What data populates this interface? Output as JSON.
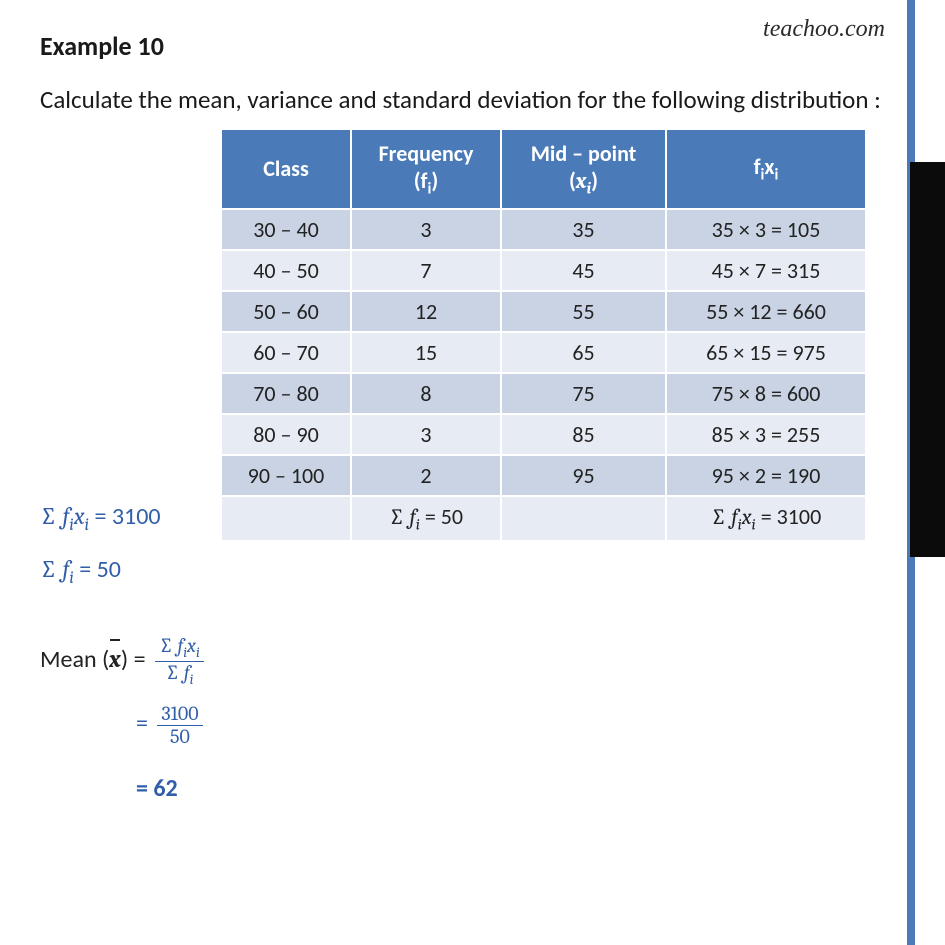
{
  "watermark": "teachoo.com",
  "title": "Example 10",
  "question": "Calculate the mean, variance and standard deviation for the following distribution :",
  "table": {
    "headers": {
      "class": "Class",
      "freq_line1": "Frequency",
      "freq_line2": "(f",
      "freq_sub": "i",
      "freq_close": ")",
      "mid_line1": "Mid – point",
      "mid_open": "(",
      "mid_var": "x",
      "mid_sub": "i",
      "mid_close": ")",
      "fixi_f": "f",
      "fixi_i1": "i",
      "fixi_x": "x",
      "fixi_i2": "i"
    },
    "rows": [
      {
        "class": "30 – 40",
        "freq": "3",
        "mid": "35",
        "fixi": "35 ×  3 = 105"
      },
      {
        "class": "40 – 50",
        "freq": "7",
        "mid": "45",
        "fixi": "45 × 7 = 315"
      },
      {
        "class": "50 – 60",
        "freq": "12",
        "mid": "55",
        "fixi": "55 × 12 = 660"
      },
      {
        "class": "60 – 70",
        "freq": "15",
        "mid": "65",
        "fixi": "65 × 15 = 975"
      },
      {
        "class": "70 – 80",
        "freq": "8",
        "mid": "75",
        "fixi": "75 × 8 = 600"
      },
      {
        "class": "80 – 90",
        "freq": "3",
        "mid": "85",
        "fixi": "85 × 3 = 255"
      },
      {
        "class": "90 – 100",
        "freq": "2",
        "mid": "95",
        "fixi": "95 × 2 = 190"
      }
    ],
    "totals": {
      "sum_fi": " = 50",
      "sum_fixi": " = 3100"
    }
  },
  "math": {
    "line1_val": " = 3100",
    "line2_val": " = 50",
    "mean_label": "Mean (",
    "mean_close": ") = ",
    "frac_val_num": "3100",
    "frac_val_den": "50",
    "result": "= 62"
  }
}
